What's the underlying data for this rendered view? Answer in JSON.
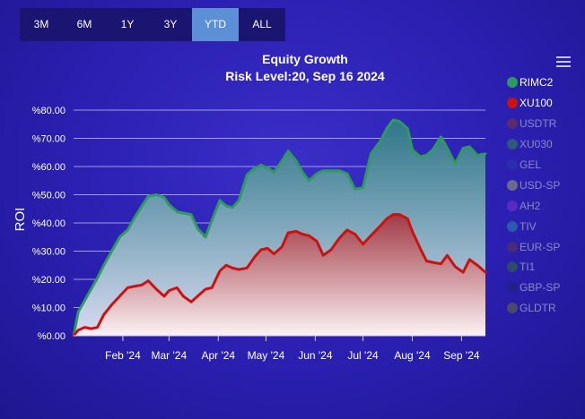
{
  "range_selector": {
    "buttons": [
      "3M",
      "6M",
      "1Y",
      "3Y",
      "YTD",
      "ALL"
    ],
    "active": "YTD"
  },
  "chart_data": {
    "type": "area",
    "title": "Equity Growth",
    "subtitle": "Risk Level:20, Sep 16 2024",
    "ylabel": "ROI",
    "xlabel": "",
    "ylim": [
      0,
      80
    ],
    "yticks": [
      "%0.00",
      "%10.00",
      "%20.00",
      "%30.00",
      "%40.00",
      "%50.00",
      "%60.00",
      "%70.00",
      "%80.00"
    ],
    "xticks": [
      "Feb '24",
      "Mar '24",
      "Apr '24",
      "May '24",
      "Jun '24",
      "Jul '24",
      "Aug '24",
      "Sep '24"
    ],
    "xtick_dates": [
      "2024-02-01",
      "2024-03-01",
      "2024-04-01",
      "2024-05-01",
      "2024-06-01",
      "2024-07-01",
      "2024-08-01",
      "2024-09-01"
    ],
    "xlim": [
      "2024-01-01",
      "2024-09-16"
    ],
    "grid": true,
    "legend_position": "right",
    "series": [
      {
        "name": "RIMC2",
        "color": "#2e9a5c",
        "visible": true,
        "x": [
          "2024-01-01",
          "2024-01-04",
          "2024-01-08",
          "2024-01-12",
          "2024-01-16",
          "2024-01-20",
          "2024-01-25",
          "2024-01-30",
          "2024-02-04",
          "2024-02-08",
          "2024-02-13",
          "2024-02-17",
          "2024-02-22",
          "2024-02-27",
          "2024-03-01",
          "2024-03-06",
          "2024-03-10",
          "2024-03-15",
          "2024-03-19",
          "2024-03-24",
          "2024-03-28",
          "2024-04-02",
          "2024-04-06",
          "2024-04-10",
          "2024-04-14",
          "2024-04-19",
          "2024-04-24",
          "2024-04-28",
          "2024-05-02",
          "2024-05-06",
          "2024-05-11",
          "2024-05-15",
          "2024-05-20",
          "2024-05-24",
          "2024-05-28",
          "2024-06-02",
          "2024-06-06",
          "2024-06-11",
          "2024-06-16",
          "2024-06-21",
          "2024-06-26",
          "2024-07-01",
          "2024-07-06",
          "2024-07-12",
          "2024-07-16",
          "2024-07-20",
          "2024-07-24",
          "2024-07-29",
          "2024-08-01",
          "2024-08-06",
          "2024-08-10",
          "2024-08-14",
          "2024-08-19",
          "2024-08-23",
          "2024-08-28",
          "2024-09-02",
          "2024-09-06",
          "2024-09-11",
          "2024-09-16"
        ],
        "y": [
          0,
          8.5,
          12.5,
          16.5,
          20.5,
          25,
          30,
          35,
          37.5,
          41.5,
          46,
          49.5,
          50,
          49,
          46.5,
          44,
          43.5,
          43,
          38,
          35,
          41,
          48,
          46,
          45.5,
          48,
          57,
          59.5,
          60.5,
          59.5,
          58,
          62,
          65.5,
          62,
          58,
          55,
          57.5,
          58.5,
          58.5,
          58.5,
          57.5,
          52,
          52.5,
          64.5,
          69,
          73.5,
          76.5,
          76,
          73.5,
          66,
          63.5,
          64,
          66,
          70.5,
          66.5,
          61,
          66.5,
          67,
          64,
          64.5
        ]
      },
      {
        "name": "XU100",
        "color": "#cc1111",
        "visible": true,
        "x": [
          "2024-01-01",
          "2024-01-04",
          "2024-01-08",
          "2024-01-12",
          "2024-01-16",
          "2024-01-20",
          "2024-01-25",
          "2024-01-30",
          "2024-02-04",
          "2024-02-08",
          "2024-02-13",
          "2024-02-17",
          "2024-02-22",
          "2024-02-27",
          "2024-03-01",
          "2024-03-06",
          "2024-03-10",
          "2024-03-15",
          "2024-03-19",
          "2024-03-24",
          "2024-03-28",
          "2024-04-02",
          "2024-04-06",
          "2024-04-10",
          "2024-04-14",
          "2024-04-19",
          "2024-04-24",
          "2024-04-28",
          "2024-05-02",
          "2024-05-06",
          "2024-05-11",
          "2024-05-15",
          "2024-05-20",
          "2024-05-24",
          "2024-05-28",
          "2024-06-02",
          "2024-06-06",
          "2024-06-11",
          "2024-06-16",
          "2024-06-21",
          "2024-06-26",
          "2024-07-01",
          "2024-07-06",
          "2024-07-12",
          "2024-07-16",
          "2024-07-20",
          "2024-07-24",
          "2024-07-29",
          "2024-08-01",
          "2024-08-06",
          "2024-08-10",
          "2024-08-14",
          "2024-08-19",
          "2024-08-23",
          "2024-08-28",
          "2024-09-02",
          "2024-09-06",
          "2024-09-11",
          "2024-09-16"
        ],
        "y": [
          0,
          2,
          3,
          2.5,
          3,
          7.5,
          11,
          14,
          17,
          17.5,
          18,
          19.5,
          16.5,
          14,
          16,
          17,
          14,
          12,
          14,
          16.5,
          17,
          23,
          25,
          24,
          23.5,
          24,
          28,
          30.5,
          31,
          29,
          31.5,
          36.5,
          37,
          36,
          35.5,
          33.5,
          28.5,
          30.5,
          34.5,
          37.5,
          36,
          32.5,
          35.5,
          39,
          41.5,
          43,
          43,
          41.5,
          37,
          31,
          26.5,
          26,
          25.5,
          28.5,
          24.5,
          22.5,
          27,
          25,
          22.5
        ]
      }
    ],
    "hidden_series": [
      "USDTR",
      "XU030",
      "GEL",
      "USD-SP",
      "AH2",
      "TIV",
      "EUR-SP",
      "TI1",
      "GBP-SP",
      "GLDTR"
    ]
  },
  "legend": {
    "items": [
      {
        "label": "RIMC2",
        "color": "#2e9a5c",
        "active": true
      },
      {
        "label": "XU100",
        "color": "#cc1111",
        "active": true
      },
      {
        "label": "USDTR",
        "color": "#5c2a6e",
        "active": false
      },
      {
        "label": "XU030",
        "color": "#2e5a7a",
        "active": false
      },
      {
        "label": "GEL",
        "color": "#2a2ea8",
        "active": false
      },
      {
        "label": "USD-SP",
        "color": "#6a6a8a",
        "active": false
      },
      {
        "label": "AH2",
        "color": "#5a2ac0",
        "active": false
      },
      {
        "label": "TIV",
        "color": "#2a5ab0",
        "active": false
      },
      {
        "label": "EUR-SP",
        "color": "#4a2a7a",
        "active": false
      },
      {
        "label": "TI1",
        "color": "#2e4a6a",
        "active": false
      },
      {
        "label": "GBP-SP",
        "color": "#22208a",
        "active": false
      },
      {
        "label": "GLDTR",
        "color": "#4a4a6a",
        "active": false
      }
    ],
    "active_text_color": "#ffffff",
    "inactive_text_color": "#8a88c8"
  }
}
